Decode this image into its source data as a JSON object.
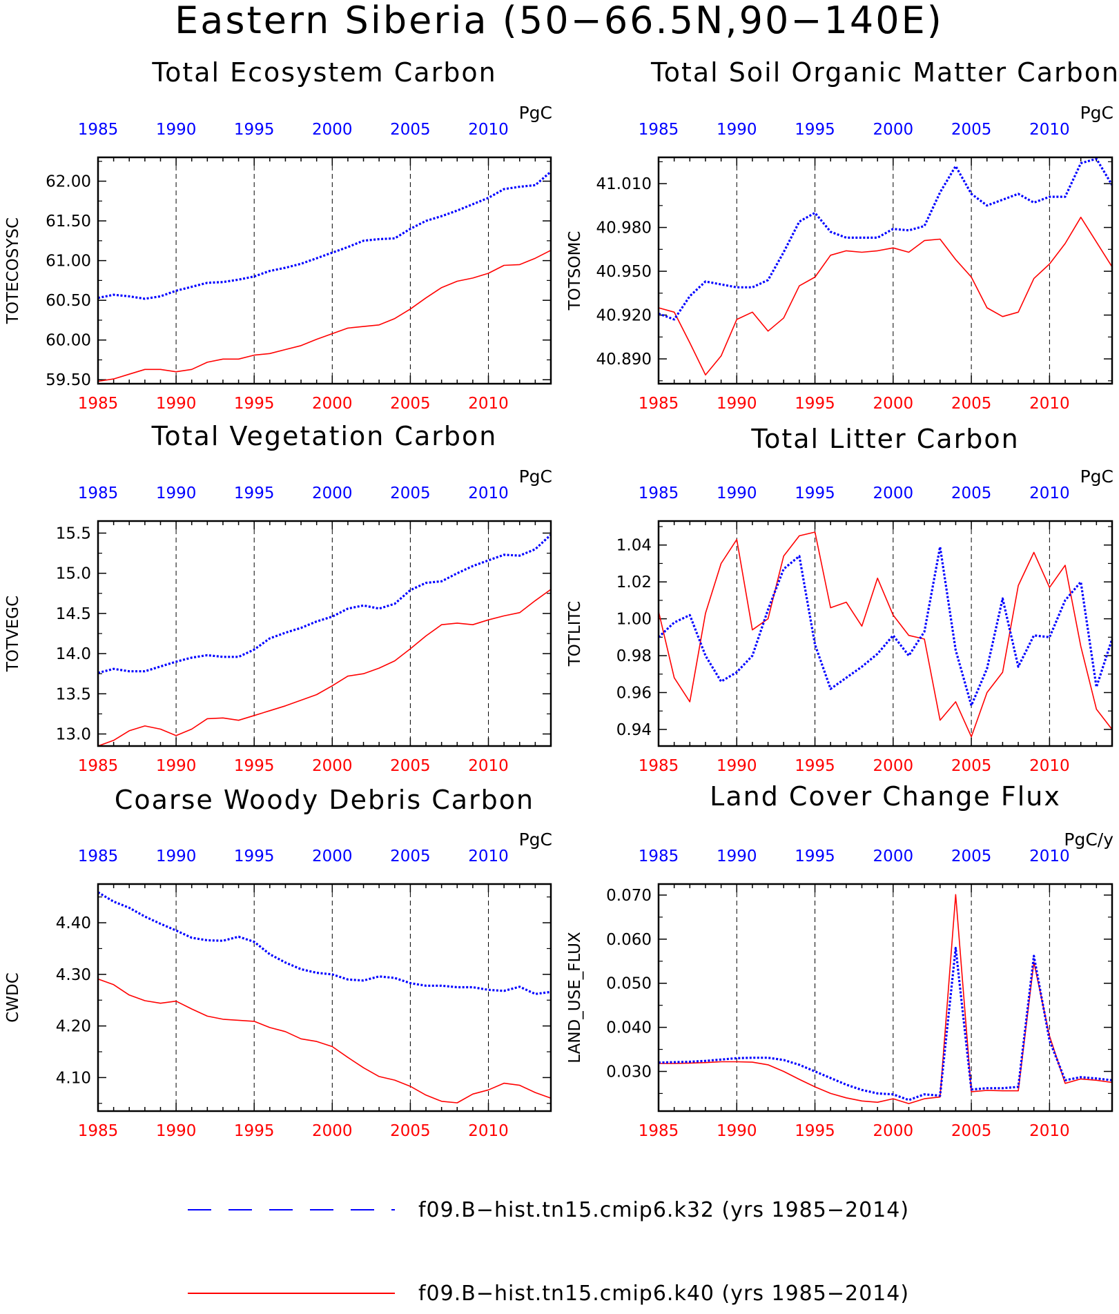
{
  "figure": {
    "title": "Eastern Siberia (50−66.5N,90−140E)",
    "colors": {
      "k32": "#0000ff",
      "k40": "#ff0000",
      "axis": "#000000"
    },
    "legend": [
      {
        "label": "f09.B−hist.tn15.cmip6.k32 (yrs 1985−2014)",
        "color": "#0000ff",
        "style": "dashed"
      },
      {
        "label": "f09.B−hist.tn15.cmip6.k40 (yrs 1985−2014)",
        "color": "#ff0000",
        "style": "solid"
      }
    ]
  },
  "chart_data": [
    {
      "type": "line",
      "title": "Total Ecosystem Carbon",
      "ylabel": "TOTECOSYSC",
      "unit": "PgC",
      "xlim": [
        1985,
        2014
      ],
      "ylim": [
        59.45,
        62.3
      ],
      "yticks": [
        "59.50",
        "60.00",
        "60.50",
        "61.00",
        "61.50",
        "62.00"
      ],
      "xticks": [
        "1985",
        "1990",
        "1995",
        "2000",
        "2005",
        "2010"
      ],
      "x": [
        1985,
        1986,
        1987,
        1988,
        1989,
        1990,
        1991,
        1992,
        1993,
        1994,
        1995,
        1996,
        1997,
        1998,
        1999,
        2000,
        2001,
        2002,
        2003,
        2004,
        2005,
        2006,
        2007,
        2008,
        2009,
        2010,
        2011,
        2012,
        2013,
        2014
      ],
      "series": [
        {
          "name": "f09.B−hist.tn15.cmip6.k32",
          "color": "#0000ff",
          "style": "dashed",
          "values": [
            60.53,
            60.57,
            60.55,
            60.52,
            60.55,
            60.62,
            60.67,
            60.72,
            60.73,
            60.76,
            60.8,
            60.87,
            60.91,
            60.96,
            61.03,
            61.1,
            61.17,
            61.25,
            61.27,
            61.28,
            61.4,
            61.5,
            61.56,
            61.63,
            61.71,
            61.79,
            61.9,
            61.93,
            61.95,
            62.12
          ]
        },
        {
          "name": "f09.B−hist.tn15.cmip6.k40",
          "color": "#ff0000",
          "style": "solid",
          "values": [
            59.48,
            59.51,
            59.57,
            59.63,
            59.63,
            59.6,
            59.63,
            59.72,
            59.76,
            59.76,
            59.81,
            59.83,
            59.88,
            59.93,
            60.01,
            60.08,
            60.15,
            60.17,
            60.19,
            60.27,
            60.39,
            60.53,
            60.66,
            60.74,
            60.78,
            60.84,
            60.94,
            60.95,
            61.03,
            61.13
          ]
        }
      ]
    },
    {
      "type": "line",
      "title": "Total Soil Organic Matter Carbon",
      "ylabel": "TOTSOMC",
      "unit": "PgC",
      "xlim": [
        1985,
        2014
      ],
      "ylim": [
        40.873,
        41.028
      ],
      "yticks": [
        "40.890",
        "40.920",
        "40.950",
        "40.980",
        "41.010"
      ],
      "xticks": [
        "1985",
        "1990",
        "1995",
        "2000",
        "2005",
        "2010"
      ],
      "x": [
        1985,
        1986,
        1987,
        1988,
        1989,
        1990,
        1991,
        1992,
        1993,
        1994,
        1995,
        1996,
        1997,
        1998,
        1999,
        2000,
        2001,
        2002,
        2003,
        2004,
        2005,
        2006,
        2007,
        2008,
        2009,
        2010,
        2011,
        2012,
        2013,
        2014
      ],
      "series": [
        {
          "name": "f09.B−hist.tn15.cmip6.k32",
          "color": "#0000ff",
          "style": "dashed",
          "values": [
            40.921,
            40.917,
            40.933,
            40.943,
            40.941,
            40.939,
            40.939,
            40.944,
            40.963,
            40.984,
            40.99,
            40.977,
            40.973,
            40.973,
            40.973,
            40.979,
            40.978,
            40.981,
            41.004,
            41.022,
            41.003,
            40.995,
            40.999,
            41.003,
            40.997,
            41.001,
            41.001,
            41.024,
            41.027,
            41.009
          ]
        },
        {
          "name": "f09.B−hist.tn15.cmip6.k40",
          "color": "#ff0000",
          "style": "solid",
          "values": [
            40.925,
            40.922,
            40.901,
            40.879,
            40.892,
            40.917,
            40.922,
            40.909,
            40.918,
            40.94,
            40.946,
            40.961,
            40.964,
            40.963,
            40.964,
            40.966,
            40.963,
            40.971,
            40.972,
            40.958,
            40.946,
            40.925,
            40.919,
            40.922,
            40.945,
            40.955,
            40.969,
            40.987,
            40.97,
            40.953
          ]
        }
      ]
    },
    {
      "type": "line",
      "title": "Total Vegetation Carbon",
      "ylabel": "TOTVEGC",
      "unit": "PgC",
      "xlim": [
        1985,
        2014
      ],
      "ylim": [
        12.85,
        15.65
      ],
      "yticks": [
        "13.0",
        "13.5",
        "14.0",
        "14.5",
        "15.0",
        "15.5"
      ],
      "xticks": [
        "1985",
        "1990",
        "1995",
        "2000",
        "2005",
        "2010"
      ],
      "x": [
        1985,
        1986,
        1987,
        1988,
        1989,
        1990,
        1991,
        1992,
        1993,
        1994,
        1995,
        1996,
        1997,
        1998,
        1999,
        2000,
        2001,
        2002,
        2003,
        2004,
        2005,
        2006,
        2007,
        2008,
        2009,
        2010,
        2011,
        2012,
        2013,
        2014
      ],
      "series": [
        {
          "name": "f09.B−hist.tn15.cmip6.k32",
          "color": "#0000ff",
          "style": "dashed",
          "values": [
            13.76,
            13.81,
            13.78,
            13.78,
            13.84,
            13.9,
            13.95,
            13.98,
            13.96,
            13.96,
            14.05,
            14.19,
            14.26,
            14.32,
            14.4,
            14.46,
            14.56,
            14.6,
            14.56,
            14.62,
            14.79,
            14.88,
            14.9,
            15.0,
            15.09,
            15.16,
            15.23,
            15.22,
            15.3,
            15.48
          ]
        },
        {
          "name": "f09.B−hist.tn15.cmip6.k40",
          "color": "#ff0000",
          "style": "solid",
          "values": [
            12.85,
            12.92,
            13.04,
            13.1,
            13.06,
            12.98,
            13.06,
            13.19,
            13.2,
            13.17,
            13.23,
            13.29,
            13.35,
            13.42,
            13.49,
            13.6,
            13.72,
            13.75,
            13.82,
            13.91,
            14.06,
            14.22,
            14.36,
            14.38,
            14.36,
            14.42,
            14.47,
            14.51,
            14.66,
            14.8
          ]
        }
      ]
    },
    {
      "type": "line",
      "title": "Total Litter Carbon",
      "ylabel": "TOTLITC",
      "unit": "PgC",
      "xlim": [
        1985,
        2014
      ],
      "ylim": [
        0.931,
        1.053
      ],
      "yticks": [
        "0.94",
        "0.96",
        "0.98",
        "1.00",
        "1.02",
        "1.04"
      ],
      "xticks": [
        "1985",
        "1990",
        "1995",
        "2000",
        "2005",
        "2010"
      ],
      "x": [
        1985,
        1986,
        1987,
        1988,
        1989,
        1990,
        1991,
        1992,
        1993,
        1994,
        1995,
        1996,
        1997,
        1998,
        1999,
        2000,
        2001,
        2002,
        2003,
        2004,
        2005,
        2006,
        2007,
        2008,
        2009,
        2010,
        2011,
        2012,
        2013,
        2014
      ],
      "series": [
        {
          "name": "f09.B−hist.tn15.cmip6.k32",
          "color": "#0000ff",
          "style": "dashed",
          "values": [
            0.99,
            0.998,
            1.002,
            0.98,
            0.966,
            0.971,
            0.98,
            1.005,
            1.027,
            1.034,
            0.986,
            0.962,
            0.968,
            0.974,
            0.981,
            0.991,
            0.98,
            0.993,
            1.039,
            0.983,
            0.953,
            0.973,
            1.011,
            0.974,
            0.991,
            0.99,
            1.01,
            1.02,
            0.963,
            0.989
          ]
        },
        {
          "name": "f09.B−hist.tn15.cmip6.k40",
          "color": "#ff0000",
          "style": "solid",
          "values": [
            1.004,
            0.968,
            0.955,
            1.003,
            1.03,
            1.043,
            0.994,
            1.0,
            1.034,
            1.045,
            1.047,
            1.006,
            1.009,
            0.996,
            1.022,
            1.002,
            0.991,
            0.989,
            0.945,
            0.955,
            0.936,
            0.96,
            0.971,
            1.018,
            1.036,
            1.017,
            1.029,
            0.985,
            0.951,
            0.94
          ]
        }
      ]
    },
    {
      "type": "line",
      "title": "Coarse Woody Debris Carbon",
      "ylabel": "CWDC",
      "unit": "PgC",
      "xlim": [
        1985,
        2014
      ],
      "ylim": [
        4.035,
        4.475
      ],
      "yticks": [
        "4.10",
        "4.20",
        "4.30",
        "4.40"
      ],
      "xticks": [
        "1985",
        "1990",
        "1995",
        "2000",
        "2005",
        "2010"
      ],
      "x": [
        1985,
        1986,
        1987,
        1988,
        1989,
        1990,
        1991,
        1992,
        1993,
        1994,
        1995,
        1996,
        1997,
        1998,
        1999,
        2000,
        2001,
        2002,
        2003,
        2004,
        2005,
        2006,
        2007,
        2008,
        2009,
        2010,
        2011,
        2012,
        2013,
        2014
      ],
      "series": [
        {
          "name": "f09.B−hist.tn15.cmip6.k32",
          "color": "#0000ff",
          "style": "dashed",
          "values": [
            4.459,
            4.441,
            4.429,
            4.412,
            4.398,
            4.385,
            4.371,
            4.366,
            4.365,
            4.373,
            4.363,
            4.339,
            4.323,
            4.31,
            4.303,
            4.3,
            4.29,
            4.288,
            4.296,
            4.293,
            4.283,
            4.278,
            4.278,
            4.275,
            4.275,
            4.27,
            4.268,
            4.276,
            4.262,
            4.266
          ]
        },
        {
          "name": "f09.B−hist.tn15.cmip6.k40",
          "color": "#ff0000",
          "style": "solid",
          "values": [
            4.291,
            4.28,
            4.26,
            4.249,
            4.244,
            4.248,
            4.233,
            4.219,
            4.213,
            4.211,
            4.209,
            4.197,
            4.189,
            4.175,
            4.17,
            4.16,
            4.139,
            4.119,
            4.102,
            4.095,
            4.083,
            4.066,
            4.054,
            4.051,
            4.068,
            4.076,
            4.089,
            4.085,
            4.071,
            4.06
          ]
        }
      ]
    },
    {
      "type": "line",
      "title": "Land Cover Change Flux",
      "ylabel": "LAND_USE_FLUX",
      "unit": "PgC/y",
      "xlim": [
        1985,
        2014
      ],
      "ylim": [
        0.021,
        0.0725
      ],
      "yticks": [
        "0.030",
        "0.040",
        "0.050",
        "0.060",
        "0.070"
      ],
      "xticks": [
        "1985",
        "1990",
        "1995",
        "2000",
        "2005",
        "2010"
      ],
      "x": [
        1985,
        1986,
        1987,
        1988,
        1989,
        1990,
        1991,
        1992,
        1993,
        1994,
        1995,
        1996,
        1997,
        1998,
        1999,
        2000,
        2001,
        2002,
        2003,
        2004,
        2005,
        2006,
        2007,
        2008,
        2009,
        2010,
        2011,
        2012,
        2013,
        2014
      ],
      "series": [
        {
          "name": "f09.B−hist.tn15.cmip6.k32",
          "color": "#0000ff",
          "style": "dashed",
          "values": [
            0.032,
            0.0321,
            0.0322,
            0.0324,
            0.0327,
            0.033,
            0.0331,
            0.0331,
            0.0326,
            0.0315,
            0.03,
            0.0285,
            0.027,
            0.0258,
            0.025,
            0.0248,
            0.0235,
            0.0248,
            0.0245,
            0.058,
            0.0259,
            0.0262,
            0.0262,
            0.0265,
            0.0562,
            0.037,
            0.028,
            0.0287,
            0.0284,
            0.028
          ]
        },
        {
          "name": "f09.B−hist.tn15.cmip6.k40",
          "color": "#ff0000",
          "style": "solid",
          "values": [
            0.0318,
            0.0318,
            0.0319,
            0.032,
            0.0322,
            0.0322,
            0.0321,
            0.0315,
            0.03,
            0.0282,
            0.0265,
            0.025,
            0.024,
            0.0233,
            0.023,
            0.0238,
            0.0227,
            0.0238,
            0.0242,
            0.0701,
            0.0254,
            0.0257,
            0.0256,
            0.0256,
            0.0548,
            0.038,
            0.0273,
            0.0283,
            0.028,
            0.0275
          ]
        }
      ]
    }
  ]
}
